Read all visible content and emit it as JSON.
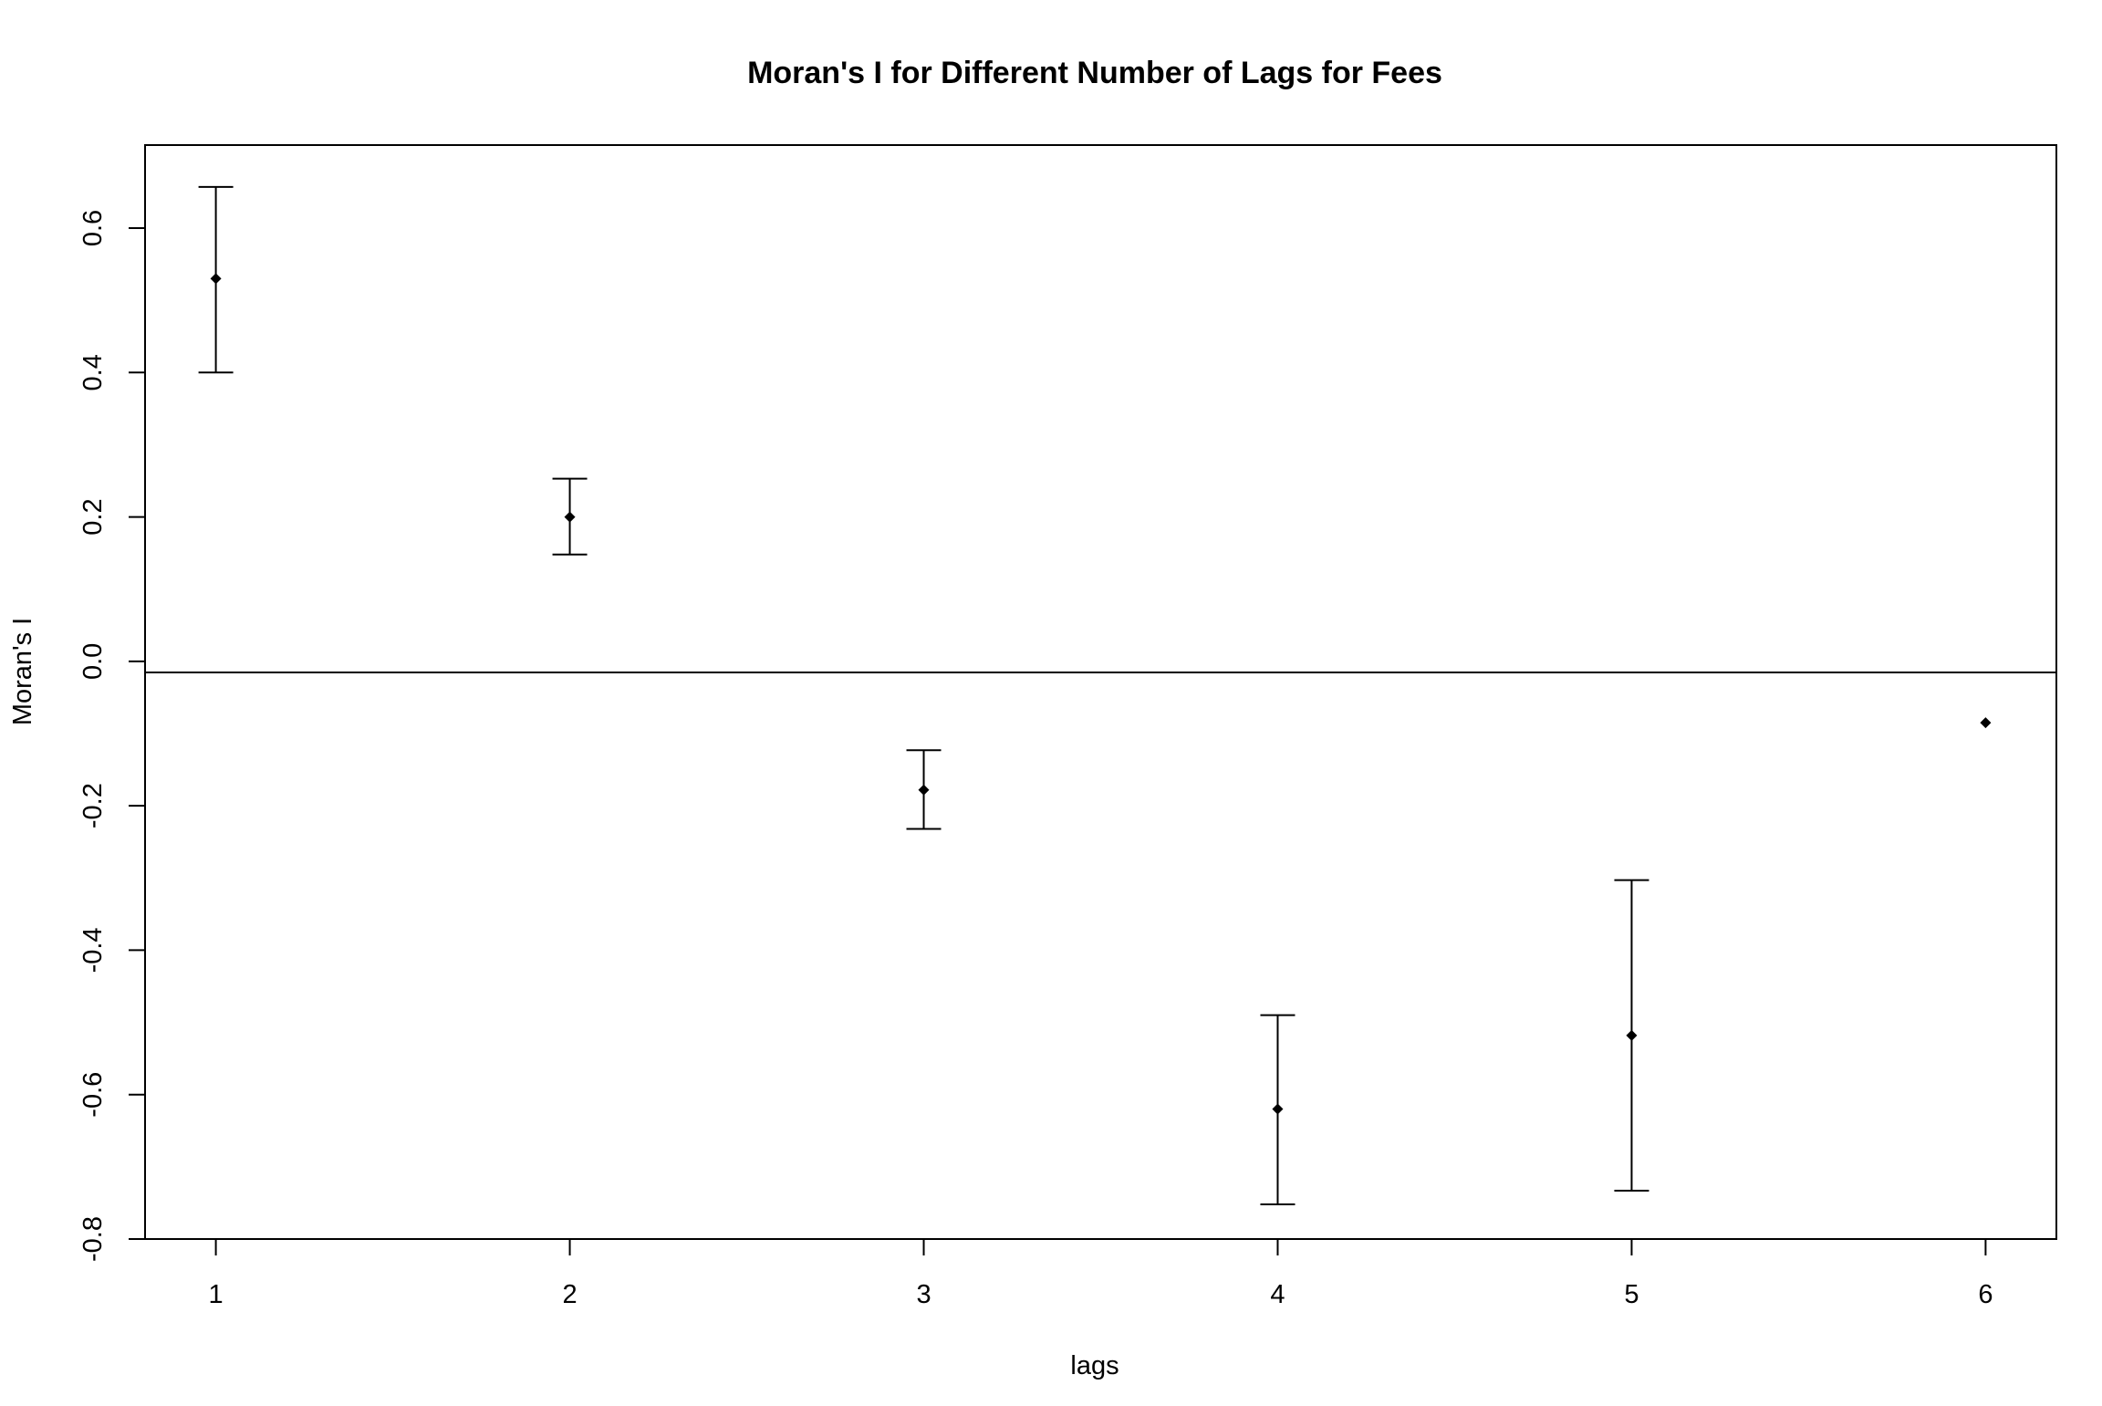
{
  "chart_data": {
    "type": "scatter",
    "title": "Moran's I for Different Number of Lags for Fees",
    "xlabel": "lags",
    "ylabel": "Moran's  I",
    "xlim": [
      0.8,
      6.2
    ],
    "ylim": [
      -0.8,
      0.715
    ],
    "x_ticks": [
      1,
      2,
      3,
      4,
      5,
      6
    ],
    "x_tick_labels": [
      "1",
      "2",
      "3",
      "4",
      "5",
      "6"
    ],
    "y_ticks": [
      -0.8,
      -0.6,
      -0.4,
      -0.2,
      0.0,
      0.2,
      0.4,
      0.6
    ],
    "y_tick_labels": [
      "-0.8",
      "-0.6",
      "-0.4",
      "-0.2",
      "0.0",
      "0.2",
      "0.4",
      "0.6"
    ],
    "reference_line_y": -0.0154,
    "grid": false,
    "legend": "none",
    "points": [
      {
        "x": 1,
        "y": 0.53,
        "lower": 0.4,
        "upper": 0.657
      },
      {
        "x": 2,
        "y": 0.2,
        "lower": 0.148,
        "upper": 0.253
      },
      {
        "x": 3,
        "y": -0.178,
        "lower": -0.232,
        "upper": -0.123
      },
      {
        "x": 4,
        "y": -0.62,
        "lower": -0.752,
        "upper": -0.49
      },
      {
        "x": 5,
        "y": -0.518,
        "lower": -0.733,
        "upper": -0.303
      },
      {
        "x": 6,
        "y": -0.085,
        "lower": null,
        "upper": null
      }
    ],
    "colors": {
      "marks": "#000000",
      "background": "#ffffff"
    }
  }
}
